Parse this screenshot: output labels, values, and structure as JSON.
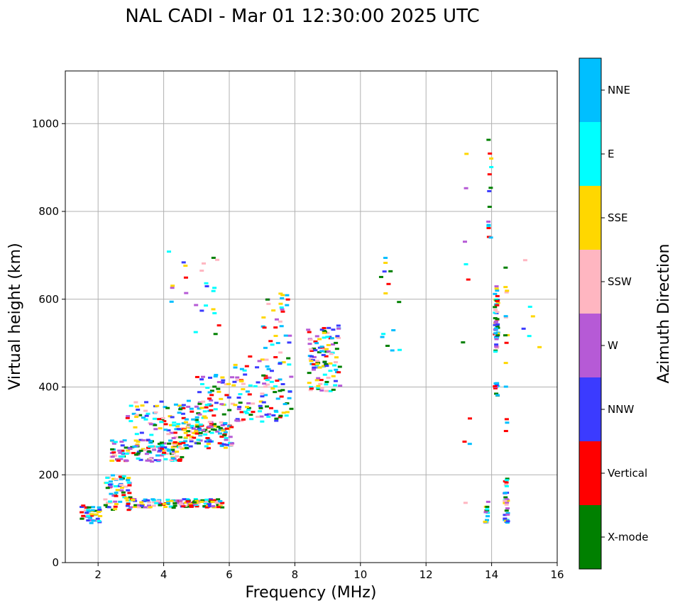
{
  "chart_data": {
    "type": "scatter",
    "title": "NAL CADI - Mar 01 12:30:00 2025 UTC",
    "xlabel": "Frequency (MHz)",
    "ylabel": "Virtual height (km)",
    "xlim": [
      1,
      16
    ],
    "ylim": [
      0,
      1120
    ],
    "xticks": [
      2,
      4,
      6,
      8,
      10,
      12,
      14,
      16
    ],
    "yticks": [
      0,
      200,
      400,
      600,
      800,
      1000
    ],
    "grid": true,
    "colorbar": {
      "title": "Azimuth Direction",
      "categories": [
        {
          "name": "X-mode",
          "color": "#008000"
        },
        {
          "name": "Vertical",
          "color": "#ff0000"
        },
        {
          "name": "NNW",
          "color": "#3b3bff"
        },
        {
          "name": "W",
          "color": "#b65ad6"
        },
        {
          "name": "SSW",
          "color": "#ffb6c1"
        },
        {
          "name": "SSE",
          "color": "#ffd700"
        },
        {
          "name": "E",
          "color": "#00ffff"
        },
        {
          "name": "NNE",
          "color": "#00bfff"
        }
      ]
    },
    "clusters": [
      {
        "x": [
          1.5,
          2.1
        ],
        "y": [
          90,
          130
        ],
        "n": 40
      },
      {
        "x": [
          2.2,
          3.0
        ],
        "y": [
          120,
          200
        ],
        "n": 70
      },
      {
        "x": [
          3.0,
          5.8
        ],
        "y": [
          125,
          145
        ],
        "n": 140
      },
      {
        "x": [
          2.4,
          4.6
        ],
        "y": [
          230,
          280
        ],
        "n": 140
      },
      {
        "x": [
          4.3,
          6.1
        ],
        "y": [
          260,
          320
        ],
        "n": 110
      },
      {
        "x": [
          2.9,
          5.5
        ],
        "y": [
          290,
          370
        ],
        "n": 110
      },
      {
        "x": [
          5.0,
          6.1
        ],
        "y": [
          330,
          430
        ],
        "n": 40
      },
      {
        "x": [
          6.1,
          7.9
        ],
        "y": [
          320,
          470
        ],
        "n": 110
      },
      {
        "x": [
          7.0,
          7.9
        ],
        "y": [
          470,
          620
        ],
        "n": 30
      },
      {
        "x": [
          4.0,
          5.7
        ],
        "y": [
          520,
          710
        ],
        "n": 24
      },
      {
        "x": [
          8.4,
          9.4
        ],
        "y": [
          390,
          540
        ],
        "n": 110
      },
      {
        "x": [
          10.6,
          11.2
        ],
        "y": [
          480,
          720
        ],
        "n": 14
      },
      {
        "x": [
          13.1,
          13.4
        ],
        "y": [
          100,
          940
        ],
        "n": 10
      },
      {
        "x": [
          13.8,
          13.9
        ],
        "y": [
          90,
          140
        ],
        "n": 14
      },
      {
        "x": [
          14.1,
          14.2
        ],
        "y": [
          375,
          410
        ],
        "n": 10
      },
      {
        "x": [
          14.1,
          14.2
        ],
        "y": [
          480,
          635
        ],
        "n": 50
      },
      {
        "x": [
          14.4,
          14.5
        ],
        "y": [
          90,
          200
        ],
        "n": 30
      },
      {
        "x": [
          14.4,
          14.5
        ],
        "y": [
          290,
          690
        ],
        "n": 14
      },
      {
        "x": [
          14.9,
          15.5
        ],
        "y": [
          450,
          730
        ],
        "n": 6
      },
      {
        "x": [
          13.9,
          14.0
        ],
        "y": [
          740,
          980
        ],
        "n": 14
      }
    ]
  }
}
